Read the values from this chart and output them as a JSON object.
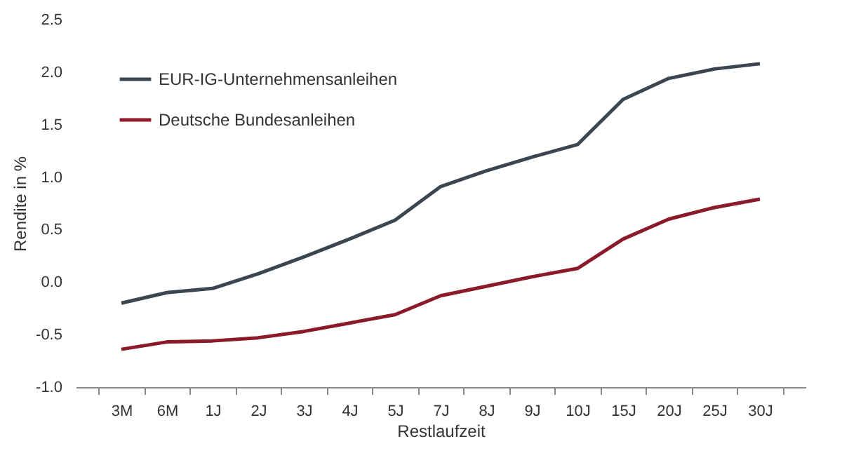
{
  "chart_data": {
    "type": "line",
    "xlabel": "Restlaufzeit",
    "ylabel": "Rendite in %",
    "categories": [
      "3M",
      "6M",
      "1J",
      "2J",
      "3J",
      "4J",
      "5J",
      "7J",
      "8J",
      "9J",
      "10J",
      "15J",
      "20J",
      "25J",
      "30J"
    ],
    "series": [
      {
        "name": "EUR-IG-Unternehmensanleihen",
        "color": "#3c4650",
        "values": [
          -0.2,
          -0.1,
          -0.06,
          0.08,
          0.24,
          0.41,
          0.59,
          0.91,
          1.06,
          1.19,
          1.31,
          1.74,
          1.94,
          2.03,
          2.08
        ]
      },
      {
        "name": "Deutsche Bundesanleihen",
        "color": "#8b1a2b",
        "values": [
          -0.64,
          -0.57,
          -0.56,
          -0.53,
          -0.47,
          -0.39,
          -0.31,
          -0.13,
          -0.04,
          0.05,
          0.13,
          0.41,
          0.6,
          0.71,
          0.79
        ]
      }
    ],
    "ylim": [
      -1.0,
      2.5
    ],
    "yticks": [
      {
        "value": -1.0,
        "label": "-1.0"
      },
      -0.5,
      {
        "value": 0,
        "label": "0.0"
      },
      0.5,
      {
        "value": 1,
        "label": "1.0"
      },
      1.5,
      {
        "value": 2,
        "label": "2.0"
      },
      2.5
    ],
    "grid": false,
    "legend": "top left",
    "marker": "none",
    "line_style": "solid"
  }
}
